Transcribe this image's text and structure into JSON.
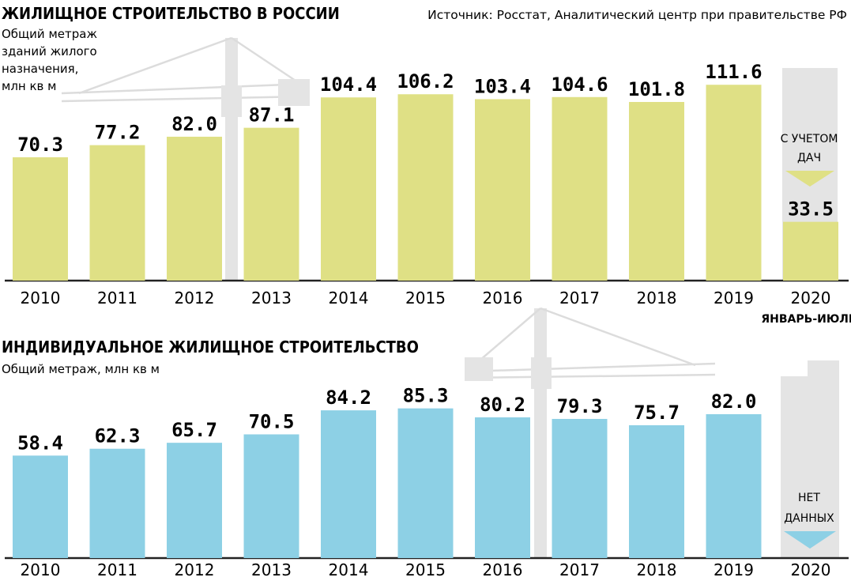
{
  "source": "Источник: Росстат, Аналитический центр при правительстве РФ",
  "chart_data": [
    {
      "type": "bar",
      "title": "ЖИЛИЩНОЕ СТРОИТЕЛЬСТВО В РОССИИ",
      "ylabel_lines": [
        "Общий метраж",
        "зданий жилого",
        "назначения,",
        "млн кв м"
      ],
      "categories": [
        "2010",
        "2011",
        "2012",
        "2013",
        "2014",
        "2015",
        "2016",
        "2017",
        "2018",
        "2019",
        "2020"
      ],
      "values": [
        70.3,
        77.2,
        82.0,
        87.1,
        104.4,
        106.2,
        103.4,
        104.6,
        101.8,
        111.6,
        33.5
      ],
      "value_labels": [
        "70.3",
        "77.2",
        "82.0",
        "87.1",
        "104.4",
        "106.2",
        "103.4",
        "104.6",
        "101.8",
        "111.6",
        "33.5"
      ],
      "last_category_sublabel": "ЯНВАРЬ-ИЮЛЬ",
      "last_bar_note_lines": [
        "С УЧЕТОМ",
        "ДАЧ"
      ],
      "color": "#dfe085",
      "grid": false,
      "legend": "none"
    },
    {
      "type": "bar",
      "title": "ИНДИВИДУАЛЬНОЕ ЖИЛИЩНОЕ СТРОИТЕЛЬСТВО",
      "ylabel": "Общий метраж, млн кв м",
      "categories": [
        "2010",
        "2011",
        "2012",
        "2013",
        "2014",
        "2015",
        "2016",
        "2017",
        "2018",
        "2019",
        "2020"
      ],
      "values": [
        58.4,
        62.3,
        65.7,
        70.5,
        84.2,
        85.3,
        80.2,
        79.3,
        75.7,
        82.0,
        null
      ],
      "value_labels": [
        "58.4",
        "62.3",
        "65.7",
        "70.5",
        "84.2",
        "85.3",
        "80.2",
        "79.3",
        "75.7",
        "82.0",
        ""
      ],
      "last_bar_note_lines": [
        "НЕТ",
        "ДАННЫХ"
      ],
      "color": "#8dd0e5",
      "grid": false,
      "legend": "none"
    }
  ]
}
